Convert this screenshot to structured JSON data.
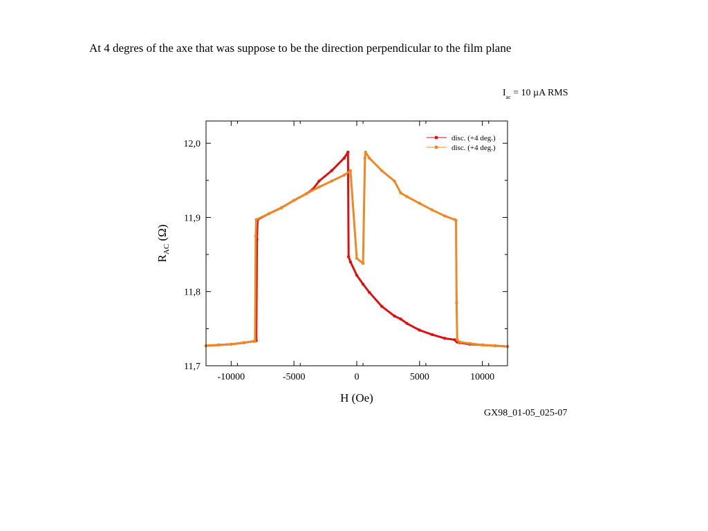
{
  "page": {
    "title": "At 4 degres of the axe that was suppose to be the direction perpendicular to the film plane",
    "current_label": "I",
    "current_subscript": "ac",
    "current_value": " = 10 µA RMS",
    "sample_id": "GX98_01-05_025-07"
  },
  "chart_data": {
    "type": "line",
    "title": "",
    "xlabel": "H (Oe)",
    "ylabel_main": "R",
    "ylabel_sub": "AC",
    "ylabel_unit": " (Ω)",
    "xlim": [
      -12000,
      12000
    ],
    "ylim": [
      11.7,
      12.03
    ],
    "xticks": [
      -10000,
      -5000,
      0,
      5000,
      10000
    ],
    "xtick_labels": [
      "-10000",
      "-5000",
      "0",
      "5000",
      "10000"
    ],
    "yticks": [
      11.7,
      11.8,
      11.9,
      12.0
    ],
    "ytick_labels": [
      "11,7",
      "11,8",
      "11,9",
      "12,0"
    ],
    "grid": false,
    "legend_position": "top-right",
    "series": [
      {
        "name": "disc. (+4 deg.)",
        "color": "#dd1111",
        "x": [
          -12000,
          -11000,
          -10000,
          -9000,
          -8200,
          -8000,
          -7950,
          -7900,
          -7000,
          -6000,
          -5000,
          -4000,
          -3500,
          -3000,
          -2000,
          -1000,
          -700,
          -650,
          -500,
          0,
          500,
          1000,
          2000,
          3000,
          3500,
          4000,
          5000,
          6000,
          7000,
          7800,
          7900,
          7950,
          8000,
          8200,
          9000,
          10000,
          11000,
          12000
        ],
        "y": [
          11.727,
          11.728,
          11.729,
          11.731,
          11.733,
          11.734,
          11.87,
          11.897,
          11.905,
          11.913,
          11.923,
          11.932,
          11.938,
          11.949,
          11.963,
          11.98,
          11.988,
          11.847,
          11.84,
          11.822,
          11.81,
          11.799,
          11.78,
          11.767,
          11.763,
          11.757,
          11.748,
          11.742,
          11.737,
          11.735,
          11.734,
          11.733,
          11.732,
          11.731,
          11.729,
          11.728,
          11.727,
          11.726
        ]
      },
      {
        "name": "disc. (+4 deg.)",
        "color": "#ee8822",
        "x": [
          -12000,
          -11000,
          -10000,
          -9000,
          -8200,
          -8100,
          -8050,
          -8000,
          -7000,
          -6000,
          -5000,
          -4000,
          -3000,
          -2000,
          -1000,
          -500,
          0,
          500,
          650,
          700,
          1000,
          2000,
          3000,
          3500,
          4000,
          5000,
          6000,
          7000,
          7800,
          7900,
          7950,
          8000,
          8200,
          9000,
          10000,
          11000,
          12000
        ],
        "y": [
          11.727,
          11.728,
          11.729,
          11.731,
          11.733,
          11.733,
          11.875,
          11.897,
          11.905,
          11.913,
          11.923,
          11.932,
          11.941,
          11.949,
          11.957,
          11.963,
          11.845,
          11.838,
          11.98,
          11.988,
          11.98,
          11.963,
          11.949,
          11.933,
          11.928,
          11.919,
          11.91,
          11.902,
          11.897,
          11.896,
          11.785,
          11.735,
          11.732,
          11.73,
          11.728,
          11.727,
          11.726
        ]
      }
    ]
  }
}
